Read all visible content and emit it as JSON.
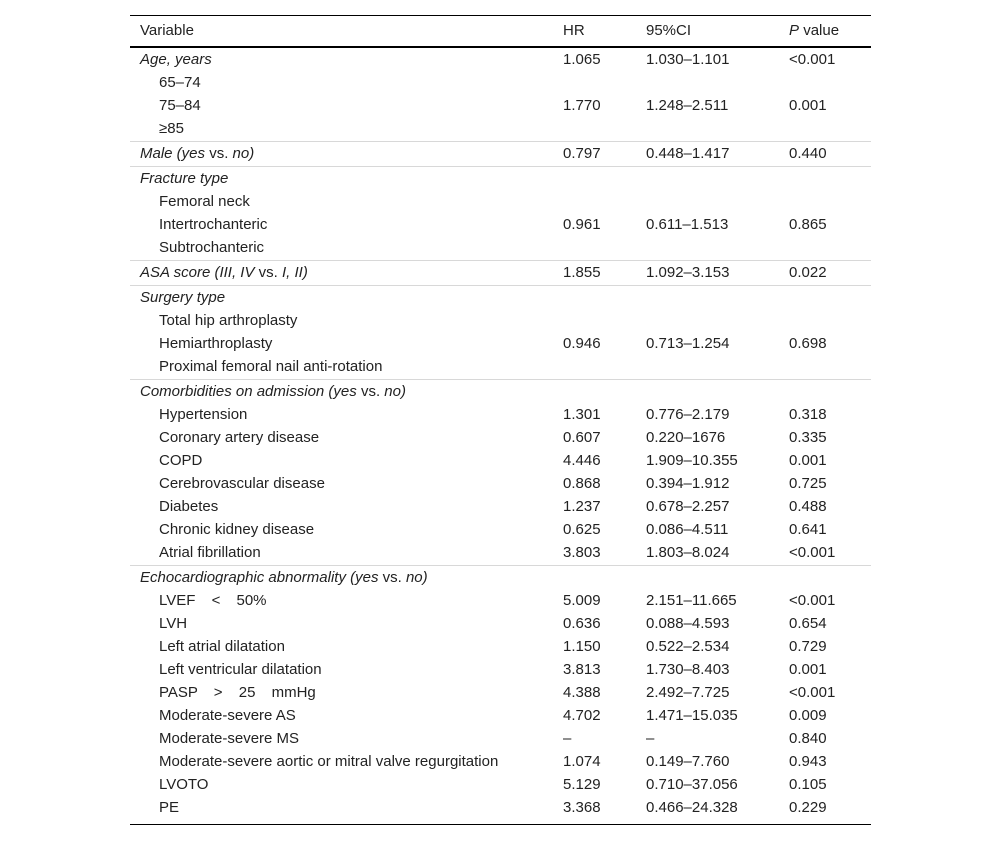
{
  "header": {
    "variable": "Variable",
    "hr": "HR",
    "ci": "95%CI",
    "p": [
      "P",
      "value"
    ]
  },
  "groups": [
    {
      "label": [
        "Age, years"
      ],
      "hr": "1.065",
      "ci": "1.030–1.101",
      "p": "<0.001",
      "items": [
        {
          "label": "65–74"
        },
        {
          "label": "75–84",
          "hr": "1.770",
          "ci": "1.248–2.511",
          "p": "0.001"
        },
        {
          "label": "≥85"
        }
      ]
    },
    {
      "label": [
        "Male (yes",
        "vs.",
        "no)"
      ],
      "hr": "0.797",
      "ci": "0.448–1.417",
      "p": "0.440"
    },
    {
      "label": [
        "Fracture type"
      ],
      "items": [
        {
          "label": "Femoral neck"
        },
        {
          "label": "Intertrochanteric",
          "hr": "0.961",
          "ci": "0.611–1.513",
          "p": "0.865"
        },
        {
          "label": "Subtrochanteric"
        }
      ]
    },
    {
      "label": [
        "ASA score (III, IV",
        "vs.",
        "I, II)"
      ],
      "hr": "1.855",
      "ci": "1.092–3.153",
      "p": "0.022"
    },
    {
      "label": [
        "Surgery type"
      ],
      "items": [
        {
          "label": "Total hip arthroplasty"
        },
        {
          "label": "Hemiarthroplasty",
          "hr": "0.946",
          "ci": "0.713–1.254",
          "p": "0.698"
        },
        {
          "label": "Proximal femoral nail anti-rotation"
        }
      ]
    },
    {
      "label": [
        "Comorbidities on admission (yes",
        "vs.",
        "no)"
      ],
      "items": [
        {
          "label": "Hypertension",
          "hr": "1.301",
          "ci": "0.776–2.179",
          "p": "0.318"
        },
        {
          "label": "Coronary artery disease",
          "hr": "0.607",
          "ci": "0.220–1676",
          "p": "0.335"
        },
        {
          "label": "COPD",
          "hr": "4.446",
          "ci": "1.909–10.355",
          "p": "0.001"
        },
        {
          "label": "Cerebrovascular disease",
          "hr": "0.868",
          "ci": "0.394–1.912",
          "p": "0.725"
        },
        {
          "label": "Diabetes",
          "hr": "1.237",
          "ci": "0.678–2.257",
          "p": "0.488"
        },
        {
          "label": "Chronic kidney disease",
          "hr": "0.625",
          "ci": "0.086–4.511",
          "p": "0.641"
        },
        {
          "label": "Atrial fibrillation",
          "hr": "3.803",
          "ci": "1.803–8.024",
          "p": "<0.001"
        }
      ]
    },
    {
      "label": [
        "Echocardiographic abnormality (yes",
        "vs.",
        "no)"
      ],
      "items": [
        {
          "label": "LVEF < 50%",
          "hr": "5.009",
          "ci": "2.151–11.665",
          "p": "<0.001"
        },
        {
          "label": "LVH",
          "hr": "0.636",
          "ci": "0.088–4.593",
          "p": "0.654"
        },
        {
          "label": "Left atrial dilatation",
          "hr": "1.150",
          "ci": "0.522–2.534",
          "p": "0.729"
        },
        {
          "label": "Left ventricular dilatation",
          "hr": "3.813",
          "ci": "1.730–8.403",
          "p": "0.001"
        },
        {
          "label": "PASP > 25 mmHg",
          "hr": "4.388",
          "ci": "2.492–7.725",
          "p": "<0.001"
        },
        {
          "label": "Moderate-severe AS",
          "hr": "4.702",
          "ci": "1.471–15.035",
          "p": "0.009"
        },
        {
          "label": "Moderate-severe MS",
          "hr": "–",
          "ci": "–",
          "p": "0.840"
        },
        {
          "label": "Moderate-severe aortic or mitral valve regurgitation",
          "hr": "1.074",
          "ci": "0.149–7.760",
          "p": "0.943"
        },
        {
          "label": "LVOTO",
          "hr": "5.129",
          "ci": "0.710–37.056",
          "p": "0.105"
        },
        {
          "label": "PE",
          "hr": "3.368",
          "ci": "0.466–24.328",
          "p": "0.229"
        }
      ]
    }
  ]
}
